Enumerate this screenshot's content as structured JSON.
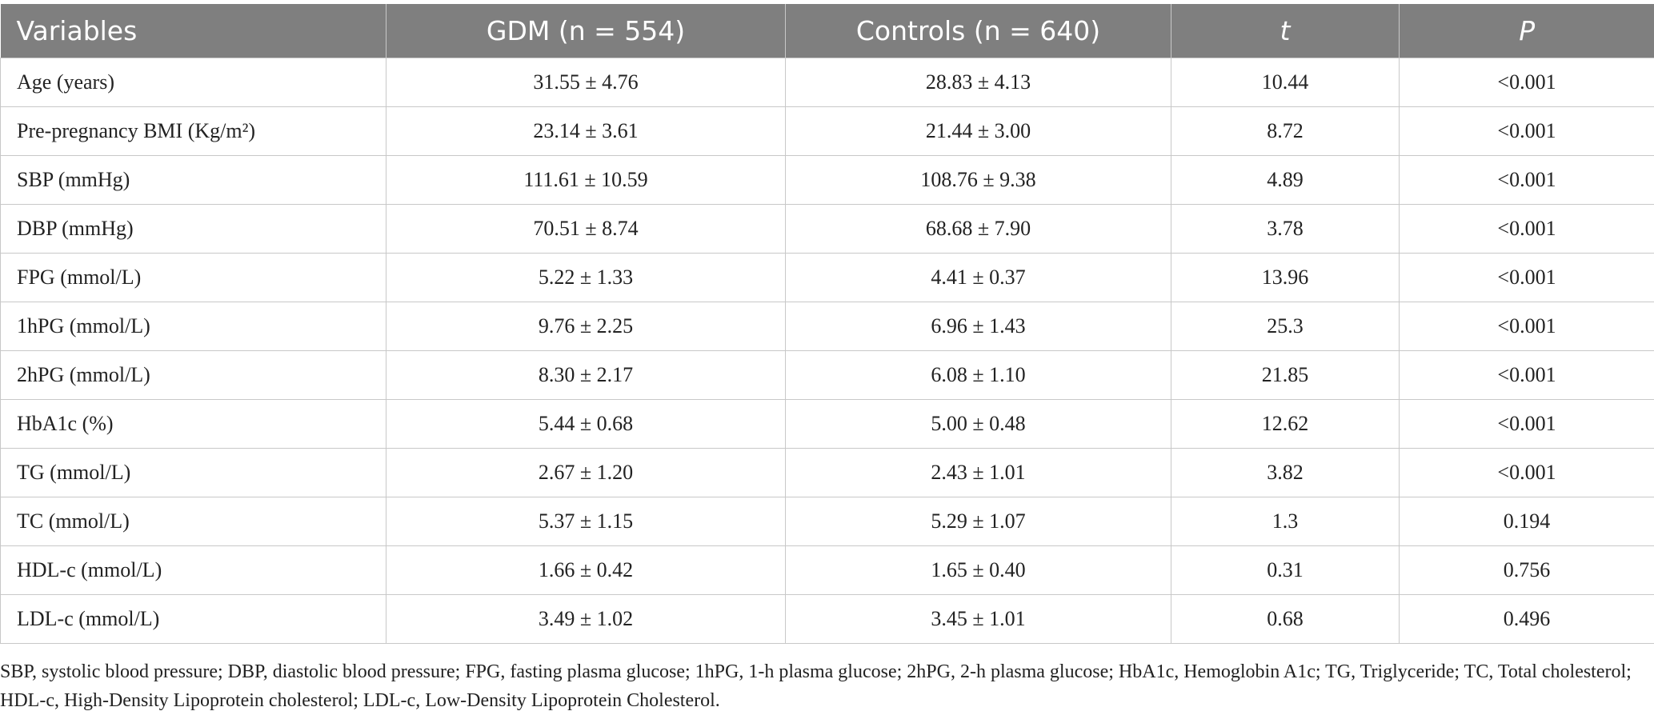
{
  "table": {
    "header": [
      "Variables",
      "GDM (n = 554)",
      "Controls (n = 640)",
      "t",
      "P"
    ],
    "rows": [
      [
        "Age (years)",
        "31.55 ± 4.76",
        "28.83 ± 4.13",
        "10.44",
        "<0.001"
      ],
      [
        "Pre-pregnancy BMI (Kg/m²)",
        "23.14 ± 3.61",
        "21.44 ± 3.00",
        "8.72",
        "<0.001"
      ],
      [
        "SBP (mmHg)",
        "111.61 ± 10.59",
        "108.76 ± 9.38",
        "4.89",
        "<0.001"
      ],
      [
        "DBP (mmHg)",
        "70.51 ± 8.74",
        "68.68 ± 7.90",
        "3.78",
        "<0.001"
      ],
      [
        "FPG (mmol/L)",
        "5.22 ± 1.33",
        "4.41 ± 0.37",
        "13.96",
        "<0.001"
      ],
      [
        "1hPG (mmol/L)",
        "9.76 ± 2.25",
        "6.96 ± 1.43",
        "25.3",
        "<0.001"
      ],
      [
        "2hPG (mmol/L)",
        "8.30 ± 2.17",
        "6.08 ± 1.10",
        "21.85",
        "<0.001"
      ],
      [
        "HbA1c (%)",
        "5.44 ± 0.68",
        "5.00 ± 0.48",
        "12.62",
        "<0.001"
      ],
      [
        "TG (mmol/L)",
        "2.67 ± 1.20",
        "2.43 ± 1.01",
        "3.82",
        "<0.001"
      ],
      [
        "TC (mmol/L)",
        "5.37 ± 1.15",
        "5.29 ± 1.07",
        "1.3",
        "0.194"
      ],
      [
        "HDL-c (mmol/L)",
        "1.66 ± 0.42",
        "1.65 ± 0.40",
        "0.31",
        "0.756"
      ],
      [
        "LDL-c (mmol/L)",
        "3.49 ± 1.02",
        "3.45 ± 1.01",
        "0.68",
        "0.496"
      ]
    ]
  },
  "footnote": "SBP, systolic blood pressure; DBP, diastolic blood pressure; FPG, fasting plasma glucose; 1hPG, 1-h plasma glucose; 2hPG, 2-h plasma glucose; HbA1c, Hemoglobin A1c; TG, Triglyceride; TC, Total cholesterol; HDL-c, High-Density Lipoprotein cholesterol; LDL-c, Low-Density Lipoprotein Cholesterol."
}
